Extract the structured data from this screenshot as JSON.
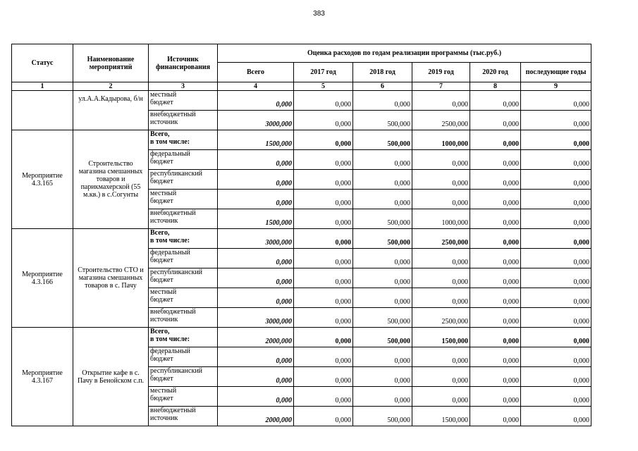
{
  "page_number": "383",
  "table": {
    "header": {
      "status": "Статус",
      "name": "Наименование мероприятий",
      "source": "Источник финансирования",
      "estimate": "Оценка расходов по годам реализации  программы (тыс.руб.)",
      "years": [
        "Всего",
        "2017 год",
        "2018 год",
        "2019 год",
        "2020 год",
        "последующие годы"
      ],
      "numbers": [
        "1",
        "2",
        "3",
        "4",
        "5",
        "6",
        "7",
        "8",
        "9"
      ]
    },
    "continuation": {
      "name": "ул.А.А.Кадырова, б/н",
      "rows": [
        {
          "source": "местный\nбюджет",
          "values": [
            "0,000",
            "0,000",
            "0,000",
            "0,000",
            "0,000",
            "0,000"
          ]
        },
        {
          "source": "внебюджетный\nисточник",
          "values": [
            "3000,000",
            "0,000",
            "500,000",
            "2500,000",
            "0,000",
            "0,000"
          ]
        }
      ]
    },
    "blocks": [
      {
        "status": "Мероприятие 4.3.165",
        "name": "Строительство магазина смешанных товаров и парикмахерской (55 м.кв.) в с.Согунты",
        "rows": [
          {
            "source": "Всего,\nв том числе:",
            "values": [
              "1500,000",
              "0,000",
              "500,000",
              "1000,000",
              "0,000",
              "0,000"
            ]
          },
          {
            "source": "федеральный\nбюджет",
            "values": [
              "0,000",
              "0,000",
              "0,000",
              "0,000",
              "0,000",
              "0,000"
            ]
          },
          {
            "source": "республиканский\nбюджет",
            "values": [
              "0,000",
              "0,000",
              "0,000",
              "0,000",
              "0,000",
              "0,000"
            ]
          },
          {
            "source": "местный\nбюджет",
            "values": [
              "0,000",
              "0,000",
              "0,000",
              "0,000",
              "0,000",
              "0,000"
            ]
          },
          {
            "source": "внебюджетный\nисточник",
            "values": [
              "1500,000",
              "0,000",
              "500,000",
              "1000,000",
              "0,000",
              "0,000"
            ]
          }
        ]
      },
      {
        "status": "Мероприятие 4.3.166",
        "name": "Строительство СТО и магазина смешанных товаров в с. Пачу",
        "rows": [
          {
            "source": "Всего,\nв том числе:",
            "values": [
              "3000,000",
              "0,000",
              "500,000",
              "2500,000",
              "0,000",
              "0,000"
            ]
          },
          {
            "source": "федеральный\nбюджет",
            "values": [
              "0,000",
              "0,000",
              "0,000",
              "0,000",
              "0,000",
              "0,000"
            ]
          },
          {
            "source": "республиканский\nбюджет",
            "values": [
              "0,000",
              "0,000",
              "0,000",
              "0,000",
              "0,000",
              "0,000"
            ]
          },
          {
            "source": "местный\nбюджет",
            "values": [
              "0,000",
              "0,000",
              "0,000",
              "0,000",
              "0,000",
              "0,000"
            ]
          },
          {
            "source": "внебюджетный\nисточник",
            "values": [
              "3000,000",
              "0,000",
              "500,000",
              "2500,000",
              "0,000",
              "0,000"
            ]
          }
        ]
      },
      {
        "status": "Мероприятие 4.3.167",
        "name": "Открытие кафе в с. Пачу в Бенойском с.п.",
        "rows": [
          {
            "source": "Всего,\nв том числе:",
            "values": [
              "2000,000",
              "0,000",
              "500,000",
              "1500,000",
              "0,000",
              "0,000"
            ]
          },
          {
            "source": "федеральный\nбюджет",
            "values": [
              "0,000",
              "0,000",
              "0,000",
              "0,000",
              "0,000",
              "0,000"
            ]
          },
          {
            "source": "республиканский\nбюджет",
            "values": [
              "0,000",
              "0,000",
              "0,000",
              "0,000",
              "0,000",
              "0,000"
            ]
          },
          {
            "source": "местный\nбюджет",
            "values": [
              "0,000",
              "0,000",
              "0,000",
              "0,000",
              "0,000",
              "0,000"
            ]
          },
          {
            "source": "внебюджетный\nисточник",
            "values": [
              "2000,000",
              "0,000",
              "500,000",
              "1500,000",
              "0,000",
              "0,000"
            ]
          }
        ]
      }
    ]
  }
}
